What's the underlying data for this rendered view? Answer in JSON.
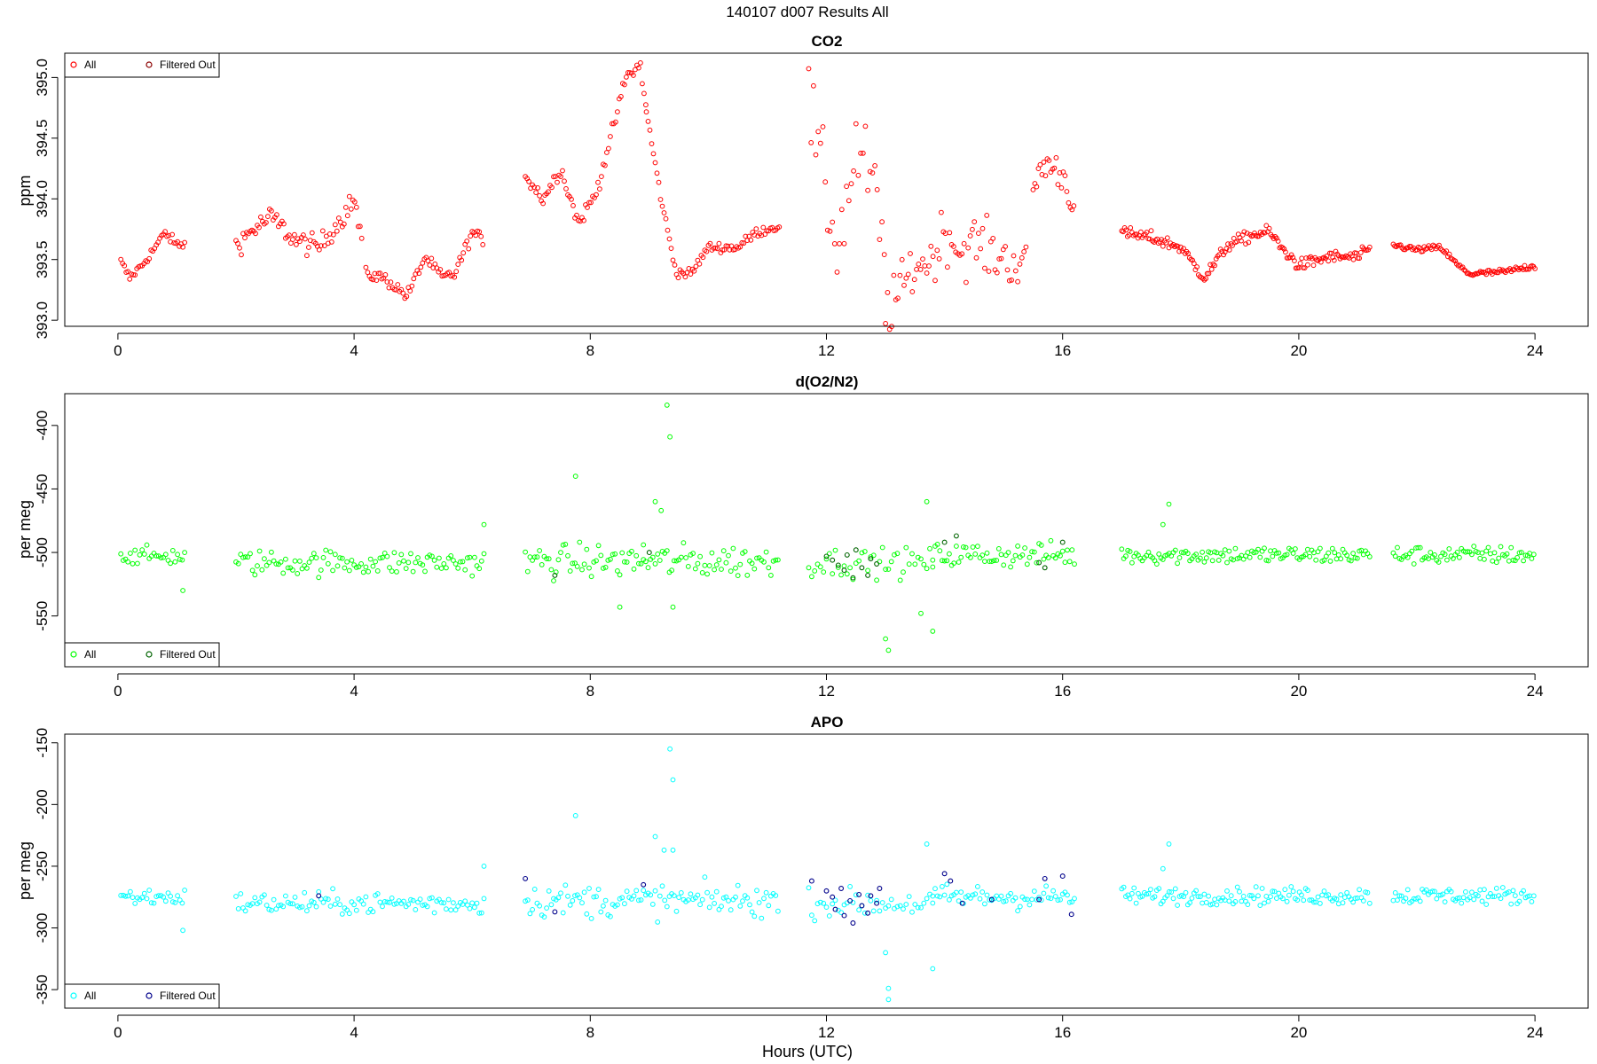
{
  "figure": {
    "suptitle": "140107   d007   Results All",
    "xlabel": "Hours (UTC)"
  },
  "chart_data": [
    {
      "type": "scatter",
      "title": "CO2",
      "ylabel": "ppm",
      "xlim": [
        -0.9,
        24.9
      ],
      "ylim": [
        392.95,
        395.2
      ],
      "xticks": [
        0,
        4,
        8,
        12,
        16,
        20,
        24
      ],
      "yticks": [
        393.0,
        393.5,
        394.0,
        394.5,
        395.0
      ],
      "ytick_labels": [
        "393.0",
        "393.5",
        "394.0",
        "394.5",
        "395.0"
      ],
      "legend_position": "top-left",
      "series": [
        {
          "name": "All",
          "color": "#ff0000",
          "marker": "circle-open",
          "segments": [
            {
              "x": [
                0.05,
                0.2,
                0.4,
                0.6,
                0.8,
                1.0,
                1.15
              ],
              "y": [
                393.48,
                393.35,
                393.45,
                393.58,
                393.72,
                393.62,
                393.63
              ],
              "step": 0.03,
              "noise": 0.04
            },
            {
              "x": [
                2.0,
                2.3,
                2.6,
                3.0,
                3.4,
                3.8,
                4.0,
                4.15
              ],
              "y": [
                393.62,
                393.75,
                393.85,
                393.66,
                393.6,
                393.85,
                394.0,
                393.6
              ],
              "step": 0.03,
              "noise": 0.09
            },
            {
              "x": [
                4.2,
                4.5,
                4.9,
                5.2,
                5.5,
                5.7,
                6.0,
                6.2
              ],
              "y": [
                393.38,
                393.35,
                393.2,
                393.52,
                393.35,
                393.38,
                393.72,
                393.66
              ],
              "step": 0.03,
              "noise": 0.05
            },
            {
              "x": [
                6.9,
                7.2,
                7.5,
                7.8,
                8.1,
                8.4,
                8.6,
                8.85,
                8.95
              ],
              "y": [
                394.2,
                394.0,
                394.25,
                393.8,
                394.05,
                394.6,
                395.0,
                395.1,
                394.72
              ],
              "step": 0.03,
              "noise": 0.06
            },
            {
              "x": [
                8.95,
                9.2,
                9.45,
                9.7,
                10.0,
                10.5,
                10.8,
                11.2
              ],
              "y": [
                394.72,
                394.0,
                393.4,
                393.38,
                393.6,
                393.6,
                393.72,
                393.78
              ],
              "step": 0.03,
              "noise": 0.04
            },
            {
              "x": [
                11.7,
                11.85,
                12.0,
                12.2,
                12.5,
                12.8,
                13.0
              ],
              "y": [
                394.8,
                394.4,
                394.0,
                393.6,
                394.4,
                394.1,
                393.4
              ],
              "step": 0.04,
              "noise": 0.35
            },
            {
              "x": [
                13.0,
                13.2,
                13.5,
                13.8,
                14.0,
                14.3,
                14.5,
                14.8,
                15.1,
                15.4
              ],
              "y": [
                393.05,
                393.2,
                393.45,
                393.5,
                393.75,
                393.55,
                393.65,
                393.55,
                393.5,
                393.4
              ],
              "step": 0.035,
              "noise": 0.22
            },
            {
              "x": [
                15.5,
                15.7,
                16.0,
                16.2
              ],
              "y": [
                394.1,
                394.3,
                394.2,
                393.95
              ],
              "step": 0.03,
              "noise": 0.15
            },
            {
              "x": [
                17.0,
                17.5,
                18.0,
                18.4,
                18.8,
                19.2,
                19.5,
                19.7,
                20.0,
                20.5,
                21.0,
                21.2
              ],
              "y": [
                393.72,
                393.68,
                393.6,
                393.35,
                393.62,
                393.7,
                393.73,
                393.6,
                393.45,
                393.52,
                393.52,
                393.58
              ],
              "step": 0.025,
              "noise": 0.05
            },
            {
              "x": [
                21.6,
                22.0,
                22.4,
                22.7,
                22.9,
                23.5,
                24.0
              ],
              "y": [
                393.62,
                393.58,
                393.6,
                393.45,
                393.38,
                393.4,
                393.45
              ],
              "step": 0.025,
              "noise": 0.025
            }
          ]
        },
        {
          "name": "Filtered Out",
          "color": "#8b0000",
          "marker": "circle-open",
          "points": []
        }
      ]
    },
    {
      "type": "scatter",
      "title": "d(O2/N2)",
      "ylabel": "per meg",
      "xlim": [
        -0.9,
        24.9
      ],
      "ylim": [
        -590,
        -375
      ],
      "xticks": [
        0,
        4,
        8,
        12,
        16,
        20,
        24
      ],
      "yticks": [
        -550,
        -500,
        -450,
        -400
      ],
      "ytick_labels": [
        "-550",
        "-500",
        "-450",
        "-400"
      ],
      "legend_position": "bottom-left",
      "series": [
        {
          "name": "All",
          "color": "#00ff00",
          "marker": "circle-open",
          "segments": [
            {
              "x": [
                0.05,
                1.15
              ],
              "y": [
                -503,
                -503
              ],
              "step": 0.04,
              "noise": 7
            },
            {
              "x": [
                2.0,
                6.2
              ],
              "y": [
                -508,
                -508
              ],
              "step": 0.04,
              "noise": 10
            },
            {
              "x": [
                6.9,
                11.2
              ],
              "y": [
                -507,
                -507
              ],
              "step": 0.04,
              "noise": 13
            },
            {
              "x": [
                11.7,
                13.8
              ],
              "y": [
                -508,
                -508
              ],
              "step": 0.05,
              "noise": 11
            },
            {
              "x": [
                13.8,
                16.2
              ],
              "y": [
                -502,
                -502
              ],
              "step": 0.04,
              "noise": 10
            },
            {
              "x": [
                17.0,
                21.2
              ],
              "y": [
                -502,
                -502
              ],
              "step": 0.035,
              "noise": 7
            },
            {
              "x": [
                21.6,
                24.0
              ],
              "y": [
                -502,
                -502
              ],
              "step": 0.035,
              "noise": 7
            }
          ],
          "extras": [
            [
              7.75,
              -440
            ],
            [
              9.3,
              -384
            ],
            [
              9.35,
              -409
            ],
            [
              9.1,
              -460
            ],
            [
              9.2,
              -467
            ],
            [
              8.9,
              -494
            ],
            [
              13.0,
              -568
            ],
            [
              13.05,
              -577
            ],
            [
              13.7,
              -460
            ],
            [
              13.8,
              -562
            ],
            [
              13.6,
              -548
            ],
            [
              6.2,
              -478
            ],
            [
              17.8,
              -462
            ],
            [
              17.7,
              -478
            ],
            [
              1.1,
              -530
            ],
            [
              8.5,
              -543
            ],
            [
              9.4,
              -543
            ]
          ]
        },
        {
          "name": "Filtered Out",
          "color": "#006400",
          "marker": "circle-open",
          "points": [
            [
              12.0,
              -503
            ],
            [
              12.1,
              -506
            ],
            [
              12.2,
              -510
            ],
            [
              12.3,
              -514
            ],
            [
              12.35,
              -502
            ],
            [
              12.45,
              -520
            ],
            [
              12.5,
              -498
            ],
            [
              12.6,
              -512
            ],
            [
              12.7,
              -518
            ],
            [
              12.75,
              -505
            ],
            [
              12.85,
              -509
            ],
            [
              14.0,
              -492
            ],
            [
              14.2,
              -487
            ],
            [
              15.6,
              -508
            ],
            [
              15.7,
              -512
            ],
            [
              16.0,
              -492
            ],
            [
              9.0,
              -500
            ],
            [
              7.4,
              -518
            ]
          ]
        }
      ]
    },
    {
      "type": "scatter",
      "title": "APO",
      "ylabel": "per meg",
      "xlim": [
        -0.9,
        24.9
      ],
      "ylim": [
        -365,
        -143
      ],
      "xticks": [
        0,
        4,
        8,
        12,
        16,
        20,
        24
      ],
      "yticks": [
        -350,
        -300,
        -250,
        -200,
        -150
      ],
      "ytick_labels": [
        "-350",
        "-300",
        "-250",
        "-200",
        "-150"
      ],
      "legend_position": "bottom-left",
      "series": [
        {
          "name": "All",
          "color": "#00ffff",
          "marker": "circle-open",
          "segments": [
            {
              "x": [
                0.05,
                1.15
              ],
              "y": [
                -275,
                -275
              ],
              "step": 0.04,
              "noise": 7
            },
            {
              "x": [
                2.0,
                6.2
              ],
              "y": [
                -280,
                -280
              ],
              "step": 0.04,
              "noise": 9
            },
            {
              "x": [
                6.9,
                11.2
              ],
              "y": [
                -278,
                -278
              ],
              "step": 0.04,
              "noise": 13
            },
            {
              "x": [
                11.7,
                13.8
              ],
              "y": [
                -280,
                -280
              ],
              "step": 0.05,
              "noise": 11
            },
            {
              "x": [
                13.8,
                16.2
              ],
              "y": [
                -275,
                -275
              ],
              "step": 0.04,
              "noise": 10
            },
            {
              "x": [
                17.0,
                21.2
              ],
              "y": [
                -274,
                -274
              ],
              "step": 0.035,
              "noise": 7
            },
            {
              "x": [
                21.6,
                24.0
              ],
              "y": [
                -274,
                -274
              ],
              "step": 0.035,
              "noise": 7
            }
          ],
          "extras": [
            [
              9.35,
              -155
            ],
            [
              9.4,
              -180
            ],
            [
              7.75,
              -209
            ],
            [
              9.1,
              -226
            ],
            [
              9.25,
              -237
            ],
            [
              9.4,
              -237
            ],
            [
              13.05,
              -349
            ],
            [
              13.05,
              -358
            ],
            [
              13.7,
              -232
            ],
            [
              13.8,
              -333
            ],
            [
              13.0,
              -320
            ],
            [
              6.2,
              -250
            ],
            [
              17.8,
              -232
            ],
            [
              17.7,
              -252
            ],
            [
              1.1,
              -302
            ]
          ]
        },
        {
          "name": "Filtered Out",
          "color": "#00008b",
          "marker": "circle-open",
          "points": [
            [
              11.75,
              -262
            ],
            [
              12.0,
              -270
            ],
            [
              12.1,
              -275
            ],
            [
              12.15,
              -285
            ],
            [
              12.25,
              -268
            ],
            [
              12.3,
              -290
            ],
            [
              12.4,
              -278
            ],
            [
              12.45,
              -296
            ],
            [
              12.55,
              -273
            ],
            [
              12.6,
              -282
            ],
            [
              12.7,
              -288
            ],
            [
              12.75,
              -274
            ],
            [
              12.85,
              -280
            ],
            [
              12.9,
              -268
            ],
            [
              14.0,
              -256
            ],
            [
              14.1,
              -262
            ],
            [
              14.3,
              -280
            ],
            [
              14.8,
              -277
            ],
            [
              15.6,
              -277
            ],
            [
              15.7,
              -260
            ],
            [
              16.0,
              -258
            ],
            [
              16.15,
              -289
            ],
            [
              3.4,
              -274
            ],
            [
              7.4,
              -287
            ],
            [
              8.9,
              -265
            ],
            [
              6.9,
              -260
            ]
          ]
        }
      ]
    }
  ]
}
